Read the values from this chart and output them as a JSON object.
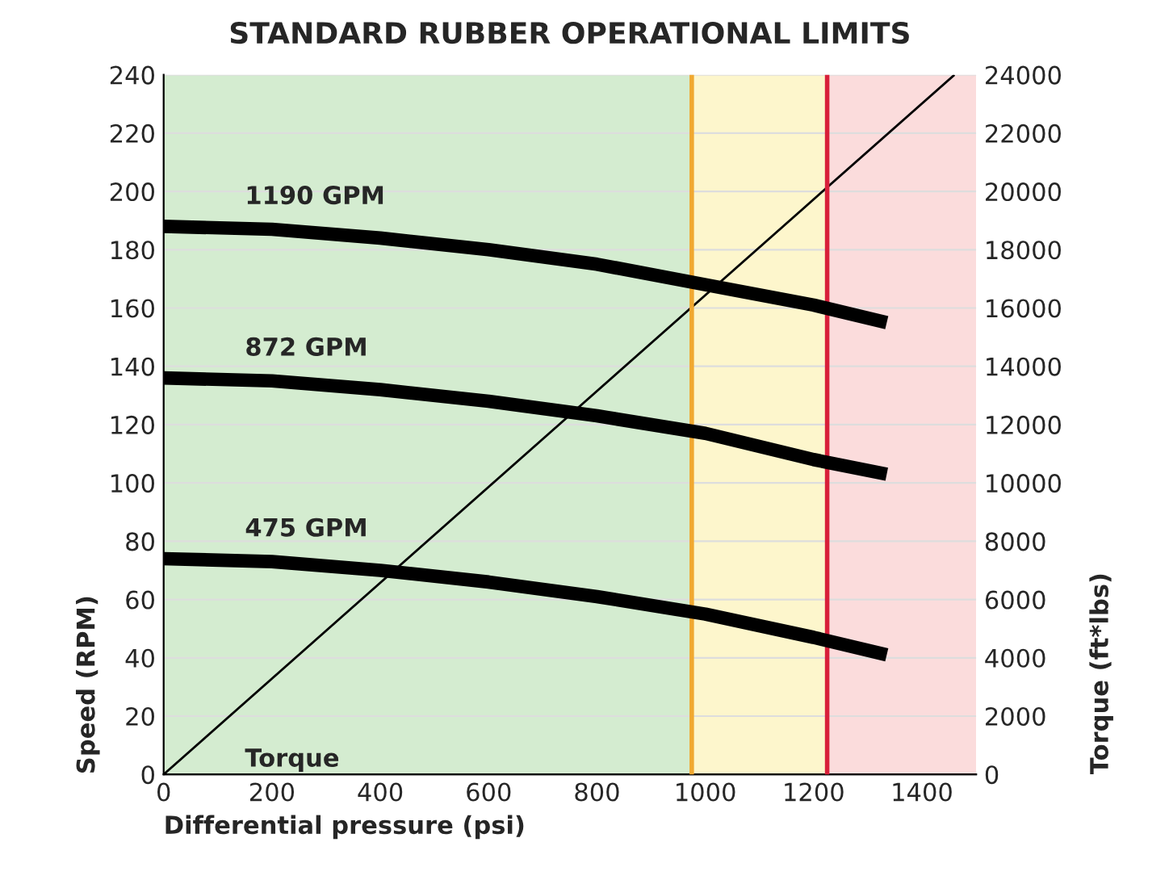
{
  "chart_data": {
    "type": "line",
    "title": "STANDARD RUBBER OPERATIONAL LIMITS",
    "xlabel": "Differential pressure (psi)",
    "ylabel": "Speed (RPM)",
    "y2label": "Torque (ft*lbs)",
    "xlim": [
      0,
      1500
    ],
    "xticks": [
      0,
      200,
      400,
      600,
      800,
      1000,
      1200,
      1400
    ],
    "ylim": [
      0,
      240
    ],
    "yticks": [
      0,
      20,
      40,
      60,
      80,
      100,
      120,
      140,
      160,
      180,
      200,
      220,
      240
    ],
    "y2lim": [
      0,
      24000
    ],
    "y2ticks": [
      0,
      2000,
      4000,
      6000,
      8000,
      10000,
      12000,
      14000,
      16000,
      18000,
      20000,
      22000,
      24000
    ],
    "grid": true,
    "legend": false,
    "series": [
      {
        "name": "1190 GPM",
        "color": "#000000",
        "x": [
          0,
          200,
          400,
          600,
          800,
          1000,
          1200,
          1335
        ],
        "values": [
          188,
          187,
          184,
          180,
          175,
          168,
          161,
          155
        ]
      },
      {
        "name": "872 GPM",
        "color": "#000000",
        "x": [
          0,
          200,
          400,
          600,
          800,
          1000,
          1200,
          1335
        ],
        "values": [
          136,
          135,
          132,
          128,
          123,
          117,
          108,
          103
        ]
      },
      {
        "name": "475 GPM",
        "color": "#000000",
        "x": [
          0,
          200,
          400,
          600,
          800,
          1000,
          1200,
          1335
        ],
        "values": [
          74,
          73,
          70,
          66,
          61,
          55,
          47,
          41
        ]
      },
      {
        "name": "Torque",
        "color": "#000000",
        "axis": "y2",
        "x": [
          0,
          1460
        ],
        "values": [
          0,
          24000
        ]
      }
    ],
    "ref_lines": [
      {
        "axis": "x",
        "value": 975,
        "color": "#f0a830"
      },
      {
        "axis": "x",
        "value": 1225,
        "color": "#d8203a"
      }
    ],
    "bands": [
      {
        "axis": "x",
        "from": 0,
        "to": 975,
        "color": "#d4ecd0"
      },
      {
        "axis": "x",
        "from": 975,
        "to": 1225,
        "color": "#fdf6cc"
      },
      {
        "axis": "x",
        "from": 1225,
        "to": 1500,
        "color": "#fbdcdc"
      }
    ]
  }
}
